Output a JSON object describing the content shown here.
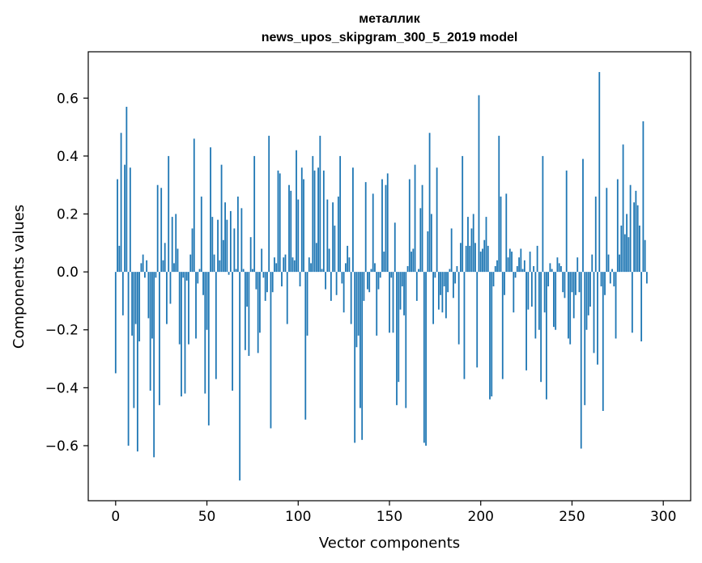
{
  "chart_data": {
    "type": "bar",
    "title_line1": "металлик",
    "title_line2": "news_upos_skipgram_300_5_2019 model",
    "xlabel": "Vector components",
    "ylabel": "Components values",
    "xlim": [
      -15,
      315
    ],
    "ylim": [
      -0.79,
      0.76
    ],
    "xticks": [
      0,
      50,
      100,
      150,
      200,
      250,
      300
    ],
    "xtick_labels": [
      "0",
      "50",
      "100",
      "150",
      "200",
      "250",
      "300"
    ],
    "yticks": [
      -0.6,
      -0.4,
      -0.2,
      0.0,
      0.2,
      0.4,
      0.6
    ],
    "ytick_labels": [
      "−0.6",
      "−0.4",
      "−0.2",
      "0.0",
      "0.2",
      "0.4",
      "0.6"
    ],
    "bar_color": "#1f77b4",
    "grid": false,
    "values": [
      -0.35,
      0.32,
      0.09,
      0.48,
      -0.15,
      0.37,
      0.57,
      -0.6,
      0.36,
      -0.22,
      -0.47,
      -0.18,
      -0.62,
      -0.24,
      0.03,
      0.06,
      -0.02,
      0.04,
      -0.16,
      -0.41,
      -0.23,
      -0.64,
      -0.02,
      0.3,
      -0.46,
      0.29,
      0.04,
      0.1,
      -0.18,
      0.4,
      -0.11,
      0.19,
      0.03,
      0.2,
      0.08,
      -0.25,
      -0.43,
      -0.02,
      -0.42,
      -0.03,
      -0.25,
      0.06,
      0.15,
      0.46,
      -0.23,
      -0.04,
      0.01,
      0.26,
      -0.08,
      -0.42,
      -0.2,
      -0.53,
      0.43,
      0.19,
      0.06,
      -0.37,
      0.18,
      0.04,
      0.37,
      0.11,
      0.24,
      0.18,
      -0.01,
      0.21,
      -0.41,
      0.15,
      0.01,
      0.26,
      -0.72,
      0.22,
      0.01,
      -0.27,
      -0.12,
      -0.29,
      0.12,
      0.01,
      0.4,
      -0.06,
      -0.28,
      -0.21,
      0.08,
      -0.02,
      -0.1,
      -0.07,
      0.47,
      -0.54,
      -0.07,
      0.05,
      0.03,
      0.35,
      0.34,
      -0.05,
      0.05,
      0.06,
      -0.18,
      0.3,
      0.28,
      0.05,
      0.04,
      0.42,
      0.25,
      -0.05,
      0.36,
      0.32,
      -0.51,
      -0.22,
      0.05,
      0.03,
      0.4,
      0.35,
      0.1,
      0.36,
      0.47,
      0.01,
      0.35,
      -0.06,
      0.25,
      0.08,
      -0.1,
      0.24,
      0.16,
      -0.08,
      0.26,
      0.4,
      -0.04,
      -0.14,
      0.03,
      0.09,
      0.05,
      -0.18,
      0.36,
      -0.59,
      -0.26,
      -0.22,
      -0.47,
      -0.58,
      -0.1,
      0.31,
      -0.06,
      -0.07,
      0.01,
      0.27,
      0.03,
      -0.22,
      -0.06,
      -0.02,
      0.32,
      0.07,
      0.3,
      0.34,
      -0.21,
      -0.02,
      -0.21,
      0.17,
      -0.46,
      -0.38,
      -0.13,
      -0.05,
      -0.15,
      -0.47,
      0.02,
      0.32,
      0.07,
      0.08,
      0.37,
      -0.1,
      0.01,
      0.22,
      0.3,
      -0.59,
      -0.6,
      0.14,
      0.48,
      0.2,
      -0.18,
      -0.02,
      0.36,
      -0.13,
      -0.08,
      -0.14,
      -0.05,
      -0.16,
      -0.07,
      0.01,
      0.15,
      -0.09,
      -0.04,
      0.02,
      -0.25,
      0.1,
      0.4,
      -0.37,
      0.09,
      0.19,
      0.09,
      0.15,
      0.2,
      0.1,
      -0.33,
      0.61,
      0.07,
      0.08,
      0.11,
      0.19,
      0.09,
      -0.44,
      -0.43,
      -0.05,
      0.02,
      0.04,
      0.47,
      0.26,
      -0.37,
      -0.08,
      0.27,
      0.05,
      0.08,
      0.07,
      -0.14,
      -0.02,
      0.02,
      0.05,
      0.08,
      0.01,
      0.04,
      -0.34,
      -0.13,
      0.07,
      -0.12,
      0.02,
      -0.23,
      0.09,
      -0.2,
      -0.38,
      0.4,
      -0.14,
      -0.44,
      -0.05,
      0.03,
      0.01,
      -0.19,
      -0.2,
      0.05,
      0.03,
      0.02,
      -0.07,
      -0.09,
      0.35,
      -0.23,
      -0.25,
      -0.07,
      -0.16,
      -0.08,
      0.05,
      -0.07,
      -0.61,
      0.39,
      -0.46,
      -0.2,
      -0.15,
      -0.12,
      0.06,
      -0.28,
      0.26,
      -0.32,
      0.69,
      -0.05,
      -0.48,
      -0.08,
      0.29,
      0.06,
      -0.04,
      0.01,
      -0.05,
      -0.23,
      0.32,
      0.06,
      0.16,
      0.44,
      0.13,
      0.2,
      0.12,
      0.3,
      -0.21,
      0.24,
      0.28,
      0.23,
      0.16,
      -0.24,
      0.52,
      0.11,
      -0.04
    ]
  }
}
